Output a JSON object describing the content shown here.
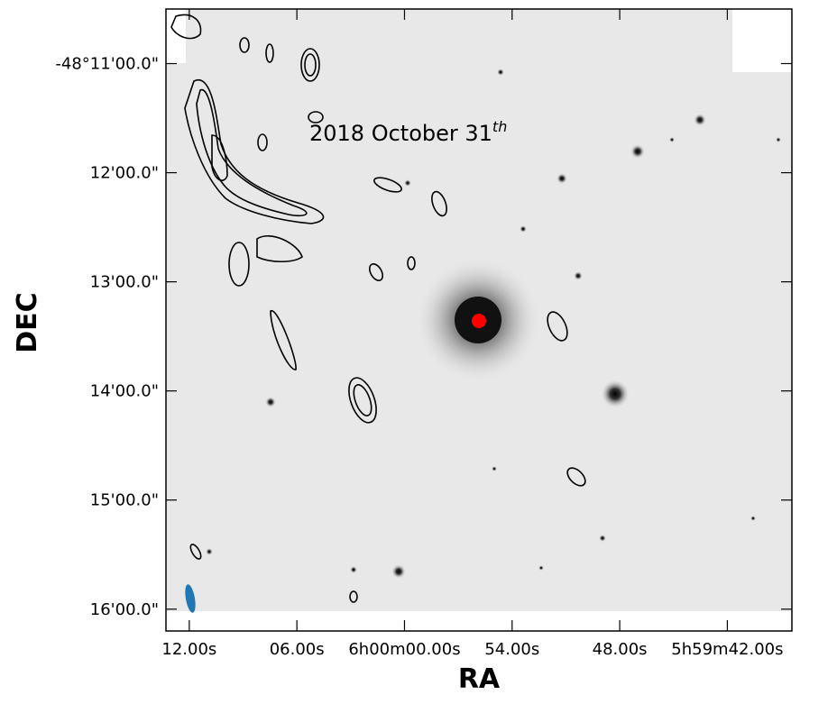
{
  "chart_data": {
    "type": "image",
    "annotation": {
      "text": "2018 October 31",
      "superscript": "th"
    },
    "xlabel": "RA",
    "ylabel": "DEC",
    "xlim": [
      13.3,
      -21.6
    ],
    "xticks": [
      {
        "value": 12,
        "label": "12.00s"
      },
      {
        "value": 6,
        "label": "06.00s"
      },
      {
        "value": 0,
        "label": "6h00m00.00s"
      },
      {
        "value": -6,
        "label": "54.00s"
      },
      {
        "value": -12,
        "label": "48.00s"
      },
      {
        "value": -18,
        "label": "5h59m42.00s"
      }
    ],
    "ylim": [
      10.5,
      16.2
    ],
    "yticks": [
      {
        "value": 11,
        "label": "-48°11'00.0\""
      },
      {
        "value": 12,
        "label": "12'00.0\""
      },
      {
        "value": 13,
        "label": "13'00.0\""
      },
      {
        "value": 14,
        "label": "14'00.0\""
      },
      {
        "value": 15,
        "label": "15'00.0\""
      },
      {
        "value": 16,
        "label": "16'00.0\""
      }
    ]
  }
}
